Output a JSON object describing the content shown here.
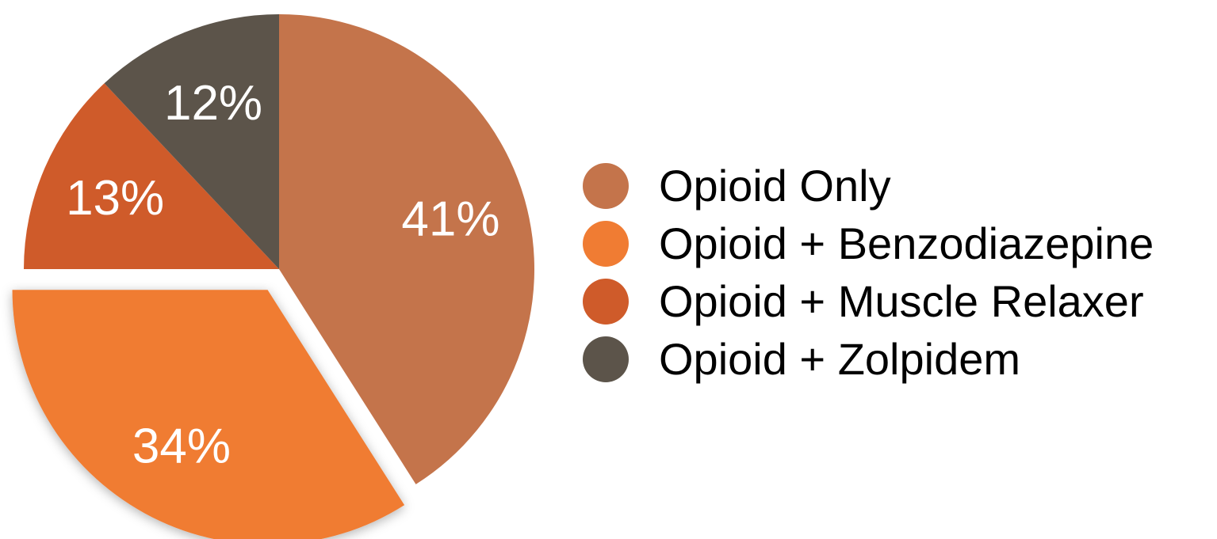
{
  "chart_data": {
    "type": "pie",
    "title": "",
    "slices": [
      {
        "label": "Opioid Only",
        "value": 41,
        "display": "41%",
        "color": "#c4744b",
        "exploded": false
      },
      {
        "label": "Opioid + Benzodiazepine",
        "value": 34,
        "display": "34%",
        "color": "#f07c33",
        "exploded": true
      },
      {
        "label": "Opioid + Muscle Relaxer",
        "value": 13,
        "display": "13%",
        "color": "#cf5b2a",
        "exploded": false
      },
      {
        "label": "Opioid + Zolpidem",
        "value": 12,
        "display": "12%",
        "color": "#5c544a",
        "exploded": false
      }
    ],
    "legend_position": "right"
  }
}
